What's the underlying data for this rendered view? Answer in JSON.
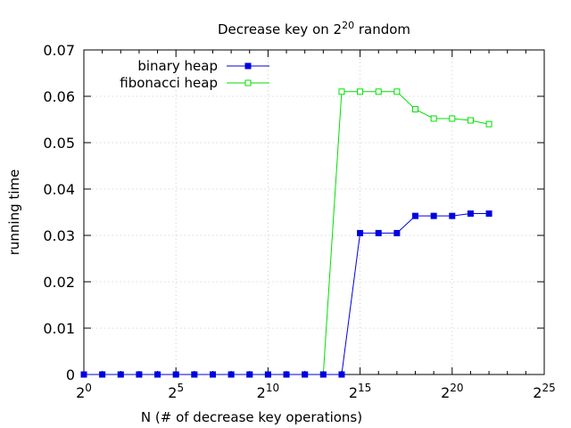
{
  "chart_data": {
    "type": "line",
    "title": {
      "text": "Decrease key on 2",
      "sup": "20",
      "tail": " random"
    },
    "xlabel": "N (# of decrease key operations)",
    "ylabel": "running time",
    "x_scale": "log2",
    "x_ticks": [
      {
        "base": "2",
        "exp": "0",
        "value": 1
      },
      {
        "base": "2",
        "exp": "5",
        "value": 32
      },
      {
        "base": "2",
        "exp": "10",
        "value": 1024
      },
      {
        "base": "2",
        "exp": "15",
        "value": 32768
      },
      {
        "base": "2",
        "exp": "20",
        "value": 1048576
      },
      {
        "base": "2",
        "exp": "25",
        "value": 33554432
      }
    ],
    "xlim": [
      1,
      33554432
    ],
    "ylim": [
      0,
      0.07
    ],
    "y_ticks": [
      {
        "label": "0",
        "value": 0
      },
      {
        "label": "0.01",
        "value": 0.01
      },
      {
        "label": "0.02",
        "value": 0.02
      },
      {
        "label": "0.03",
        "value": 0.03
      },
      {
        "label": "0.04",
        "value": 0.04
      },
      {
        "label": "0.05",
        "value": 0.05
      },
      {
        "label": "0.06",
        "value": 0.06
      },
      {
        "label": "0.07",
        "value": 0.07
      }
    ],
    "grid": true,
    "legend_position": "top-left",
    "x": [
      1,
      2,
      4,
      8,
      16,
      32,
      64,
      128,
      256,
      512,
      1024,
      2048,
      4096,
      8192,
      16384,
      32768,
      65536,
      131072,
      262144,
      524288,
      1048576,
      2097152,
      4194304
    ],
    "series": [
      {
        "name": "binary heap",
        "color": "#0000e0",
        "marker": "filled-square",
        "values": [
          0,
          0,
          0,
          0,
          0,
          0,
          0,
          0,
          0,
          0,
          0,
          0,
          0,
          0,
          0,
          0.0305,
          0.0305,
          0.0305,
          0.0342,
          0.0342,
          0.0342,
          0.0347,
          0.0347
        ]
      },
      {
        "name": "fibonacci heap",
        "color": "#00e000",
        "marker": "open-square",
        "values": [
          0,
          0,
          0,
          0,
          0,
          0,
          0,
          0,
          0,
          0,
          0,
          0,
          0,
          0,
          0.061,
          0.061,
          0.061,
          0.061,
          0.0572,
          0.0552,
          0.0552,
          0.0548,
          0.054
        ]
      }
    ]
  }
}
